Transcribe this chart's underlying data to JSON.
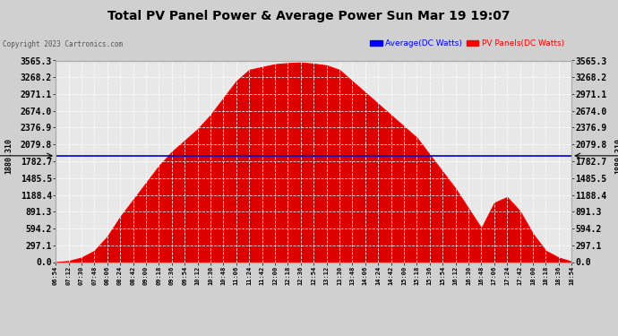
{
  "title": "Total PV Panel Power & Average Power Sun Mar 19 19:07",
  "copyright": "Copyright 2023 Cartronics.com",
  "legend_avg": "Average(DC Watts)",
  "legend_pv": "PV Panels(DC Watts)",
  "avg_value": 1880.31,
  "avg_label": "1880.310",
  "ymax": 3565.3,
  "yticks": [
    0.0,
    297.1,
    594.2,
    891.3,
    1188.4,
    1485.5,
    1782.7,
    2079.8,
    2376.9,
    2674.0,
    2971.1,
    3268.2,
    3565.3
  ],
  "ytick_labels": [
    "0.0",
    "297.1",
    "594.2",
    "891.3",
    "1188.4",
    "1485.5",
    "1782.7",
    "2079.8",
    "2376.9",
    "2674.0",
    "2971.1",
    "3268.2",
    "3565.3"
  ],
  "xtick_labels": [
    "06:54",
    "07:12",
    "07:30",
    "07:48",
    "08:06",
    "08:24",
    "08:42",
    "09:00",
    "09:18",
    "09:36",
    "09:54",
    "10:12",
    "10:30",
    "10:48",
    "11:06",
    "11:24",
    "11:42",
    "12:00",
    "12:18",
    "12:36",
    "12:54",
    "13:12",
    "13:30",
    "13:48",
    "14:06",
    "14:24",
    "14:42",
    "15:00",
    "15:18",
    "15:36",
    "15:54",
    "16:12",
    "16:30",
    "16:48",
    "17:06",
    "17:24",
    "17:42",
    "18:00",
    "18:18",
    "18:36",
    "18:54"
  ],
  "fig_bg_color": "#d0d0d0",
  "plot_bg_color": "#e8e8e8",
  "fill_color": "#dd0000",
  "fill_edge_color": "#ff0000",
  "avg_line_color": "#0000cc",
  "grid_color": "#ffffff",
  "tick_label_color": "#000000",
  "title_color": "#000000",
  "copyright_color": "#555555",
  "pv_legend_color": "#ff0000",
  "avg_legend_color": "#0000ff",
  "annotation_color": "#ffffff",
  "spine_color": "#aaaaaa",
  "pv_values": [
    0,
    20,
    80,
    200,
    450,
    800,
    1100,
    1400,
    1700,
    1950,
    2150,
    2350,
    2600,
    2900,
    3200,
    3400,
    3450,
    3500,
    3520,
    3530,
    3510,
    3480,
    3400,
    3200,
    3000,
    2800,
    2600,
    2400,
    2200,
    1900,
    1600,
    1300,
    950,
    600,
    1050,
    1150,
    900,
    500,
    200,
    80,
    10
  ]
}
